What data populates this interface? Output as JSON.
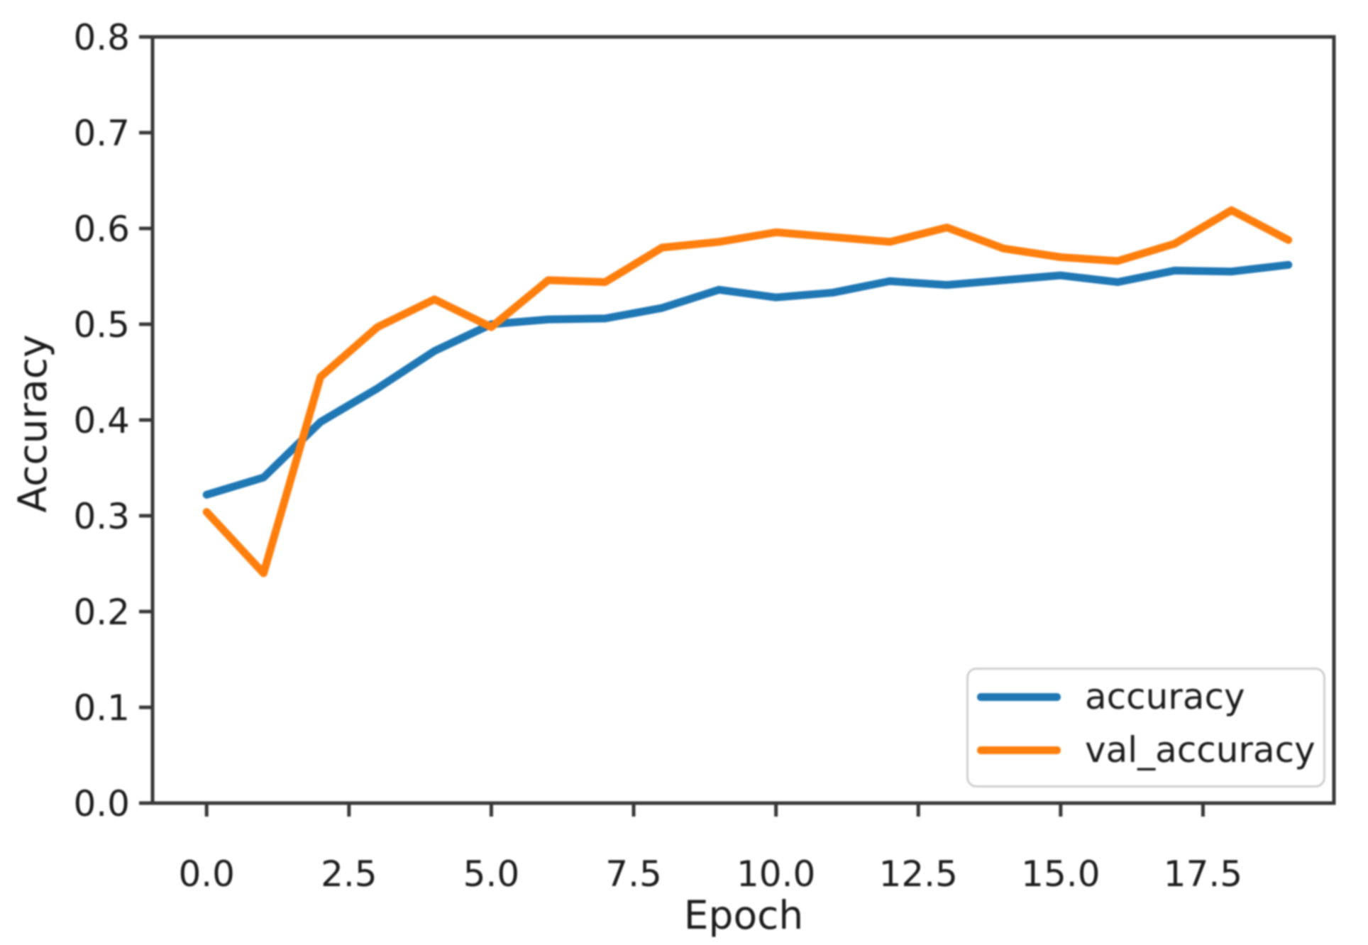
{
  "chart_data": {
    "type": "line",
    "title": "",
    "xlabel": "Epoch",
    "ylabel": "Accuracy",
    "x": [
      0,
      1,
      2,
      3,
      4,
      5,
      6,
      7,
      8,
      9,
      10,
      11,
      12,
      13,
      14,
      15,
      16,
      17,
      18,
      19
    ],
    "series": [
      {
        "name": "accuracy",
        "color": "#1f77b4",
        "values": [
          0.322,
          0.34,
          0.398,
          0.433,
          0.472,
          0.5,
          0.505,
          0.506,
          0.517,
          0.536,
          0.528,
          0.533,
          0.545,
          0.541,
          0.546,
          0.551,
          0.544,
          0.556,
          0.555,
          0.562
        ]
      },
      {
        "name": "val_accuracy",
        "color": "#ff7f0e",
        "values": [
          0.304,
          0.24,
          0.445,
          0.497,
          0.526,
          0.497,
          0.546,
          0.544,
          0.58,
          0.586,
          0.596,
          0.591,
          0.586,
          0.601,
          0.579,
          0.57,
          0.566,
          0.584,
          0.619,
          0.588
        ]
      }
    ],
    "xlim": [
      -0.95,
      19.8
    ],
    "ylim": [
      0.0,
      0.8
    ],
    "xticks": {
      "values": [
        0,
        2.5,
        5,
        7.5,
        10,
        12.5,
        15,
        17.5
      ],
      "labels": [
        "0.0",
        "2.5",
        "5.0",
        "7.5",
        "10.0",
        "12.5",
        "15.0",
        "17.5"
      ]
    },
    "yticks": {
      "values": [
        0.0,
        0.1,
        0.2,
        0.3,
        0.4,
        0.5,
        0.6,
        0.7,
        0.8
      ],
      "labels": [
        "0.0",
        "0.1",
        "0.2",
        "0.3",
        "0.4",
        "0.5",
        "0.6",
        "0.7",
        "0.8"
      ]
    },
    "grid": false,
    "legend": {
      "position": "lower right",
      "entries": [
        "accuracy",
        "val_accuracy"
      ]
    }
  }
}
